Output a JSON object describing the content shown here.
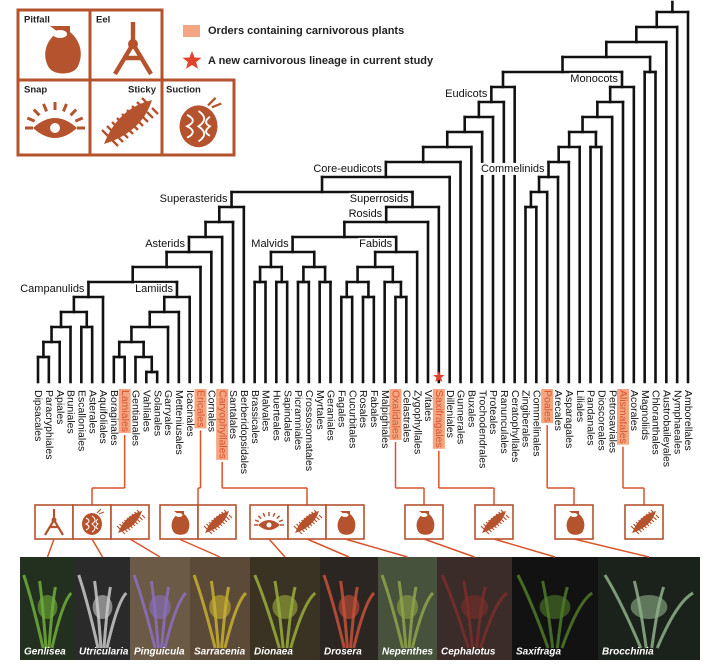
{
  "legend": {
    "carnivorous": "Orders containing carnivorous  plants",
    "new_lineage": "A new carnivorous lineage in current study"
  },
  "trap_types": [
    "Pitfall",
    "Eel",
    "Snap",
    "Sticky",
    "Suction"
  ],
  "clades": [
    "Eudicots",
    "Core-eudicots",
    "Superasterids",
    "Superrosids",
    "Rosids",
    "Asterids",
    "Malvids",
    "Fabids",
    "Campanulids",
    "Lamiids",
    "Monocots",
    "Commelinids"
  ],
  "orders": [
    {
      "name": "Dipsacales"
    },
    {
      "name": "Paracryphiales"
    },
    {
      "name": "Apiales"
    },
    {
      "name": "Bruniales"
    },
    {
      "name": "Escalloniales"
    },
    {
      "name": "Asterales"
    },
    {
      "name": "Aquifoliales"
    },
    {
      "name": "Boraginales"
    },
    {
      "name": "Lamiales",
      "carnivorous": true
    },
    {
      "name": "Gentianales"
    },
    {
      "name": "Vahliales"
    },
    {
      "name": "Solanales"
    },
    {
      "name": "Garryales"
    },
    {
      "name": "Metteniusales"
    },
    {
      "name": "Icacinales"
    },
    {
      "name": "Ericales",
      "carnivorous": true
    },
    {
      "name": "Cornales"
    },
    {
      "name": "Caryophyllales",
      "carnivorous": true
    },
    {
      "name": "Santalales"
    },
    {
      "name": "Berberidopsidales"
    },
    {
      "name": "Brassicales"
    },
    {
      "name": "Malvales"
    },
    {
      "name": "Huerteales"
    },
    {
      "name": "Sapindales"
    },
    {
      "name": "Picramniales"
    },
    {
      "name": "Crossosomatales"
    },
    {
      "name": "Myrtales"
    },
    {
      "name": "Geraniales"
    },
    {
      "name": "Fagales"
    },
    {
      "name": "Cucurbitales"
    },
    {
      "name": "Rosales"
    },
    {
      "name": "Fabales"
    },
    {
      "name": "Malpighiales"
    },
    {
      "name": "Oxalidales",
      "carnivorous": true
    },
    {
      "name": "Celastrales"
    },
    {
      "name": "Zygophyllales"
    },
    {
      "name": "Vitales"
    },
    {
      "name": "Saxifragales",
      "carnivorous": true,
      "new_lineage": true
    },
    {
      "name": "Dilleniales"
    },
    {
      "name": "Gunnerales"
    },
    {
      "name": "Buxales"
    },
    {
      "name": "Trochodendrales"
    },
    {
      "name": "Proteales"
    },
    {
      "name": "Ranunculales"
    },
    {
      "name": "Ceratophyllales"
    },
    {
      "name": "Zingiberales"
    },
    {
      "name": "Commelinales"
    },
    {
      "name": "Poales",
      "carnivorous": true
    },
    {
      "name": "Arecales"
    },
    {
      "name": "Asparagales"
    },
    {
      "name": "Liliales"
    },
    {
      "name": "Pandanales"
    },
    {
      "name": "Dioscoreales"
    },
    {
      "name": "Petrosaviales"
    },
    {
      "name": "Alismatales",
      "carnivorous": true
    },
    {
      "name": "Acorales"
    },
    {
      "name": "Magnoliids"
    },
    {
      "name": "Chloranthales"
    },
    {
      "name": "Austrobaileyales"
    },
    {
      "name": "Nymphaeales"
    },
    {
      "name": "Amborellales"
    }
  ],
  "photos": [
    "Genlisea",
    "Utricularia",
    "Pinguicula",
    "Sarracenia",
    "Dionaea",
    "Drosera",
    "Nepenthes",
    "Cephalotus",
    "Saxifraga",
    "Brocchinia"
  ]
}
